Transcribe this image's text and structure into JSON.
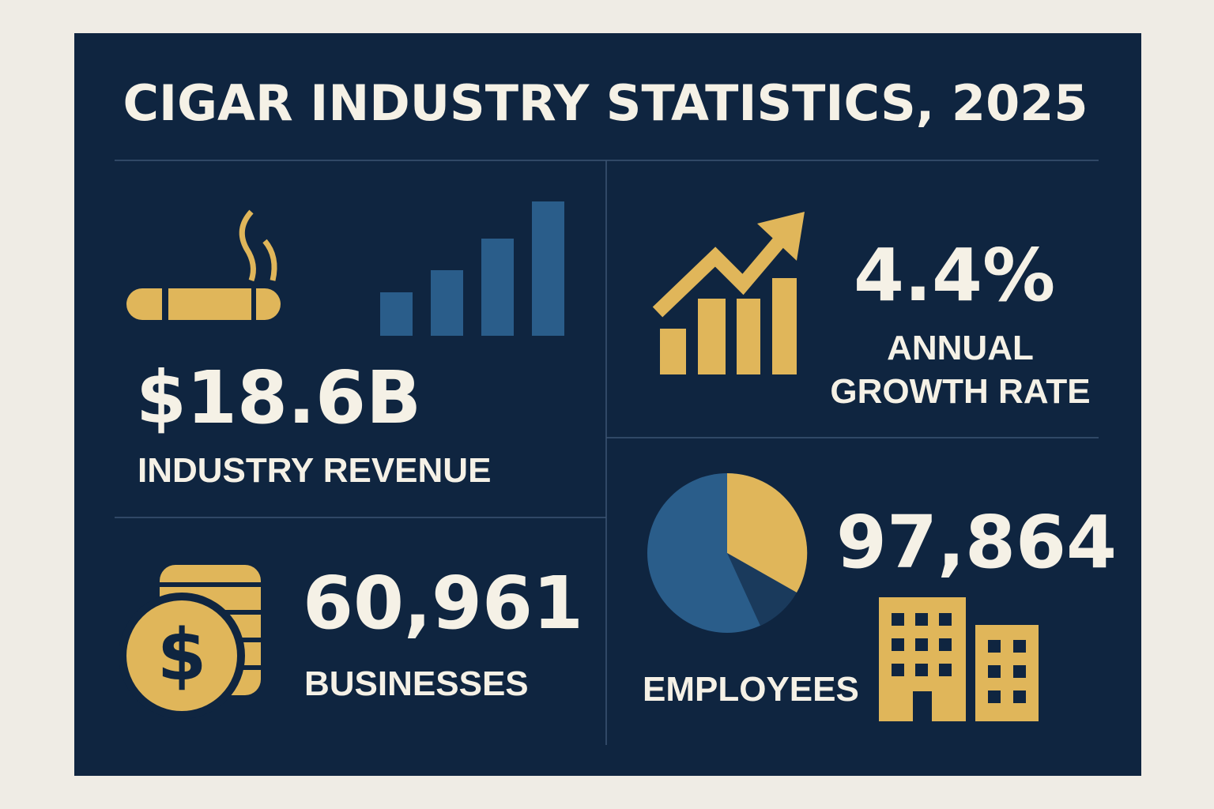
{
  "title": "CIGAR INDUSTRY STATISTICS, 2025",
  "stats": [
    {
      "value": "$18.6B",
      "label_lines": [
        "INDUSTRY REVENUE"
      ]
    },
    {
      "value": "4.4%",
      "label_lines": [
        "ANNUAL",
        "GROWTH RATE"
      ]
    },
    {
      "value": "60,961",
      "label_lines": [
        "BUSINESSES"
      ]
    },
    {
      "value": "97,864",
      "label_lines": [
        "EMPLOYEES"
      ]
    }
  ]
}
